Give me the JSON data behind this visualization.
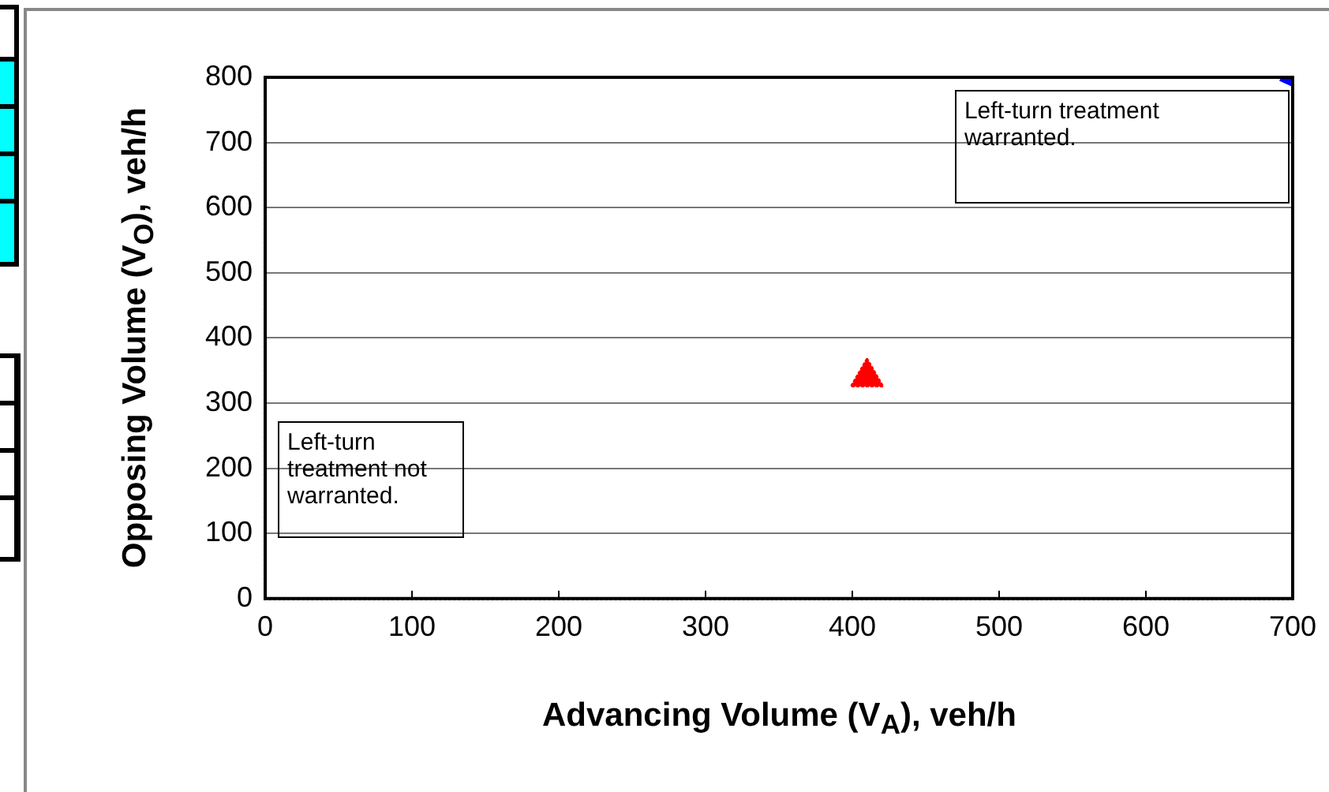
{
  "chart_data": {
    "type": "scatter",
    "xlabel": "Advancing Volume (V$_{A}$), veh/h",
    "ylabel": "Opposing Volume (V$_{O}$), veh/h",
    "xlim": [
      0,
      700
    ],
    "xticks": [
      0,
      100,
      200,
      300,
      400,
      500,
      600,
      700
    ],
    "ylim": [
      0,
      800
    ],
    "yticks": [
      0,
      100,
      200,
      300,
      400,
      500,
      600,
      700,
      800
    ],
    "grid": "y",
    "legend": false,
    "annotations": [
      "Left-turn treatment warranted.",
      "Left-turn treatment not warranted."
    ],
    "series": [
      {
        "type": "scatter",
        "color": "#ff0000",
        "x": [
          410
        ],
        "values": [
          340
        ],
        "marker": "triangle"
      },
      {
        "type": "line",
        "color": "#0000ff",
        "x": [
          692,
          700
        ],
        "values": [
          800,
          792
        ],
        "marker": "none"
      }
    ]
  }
}
